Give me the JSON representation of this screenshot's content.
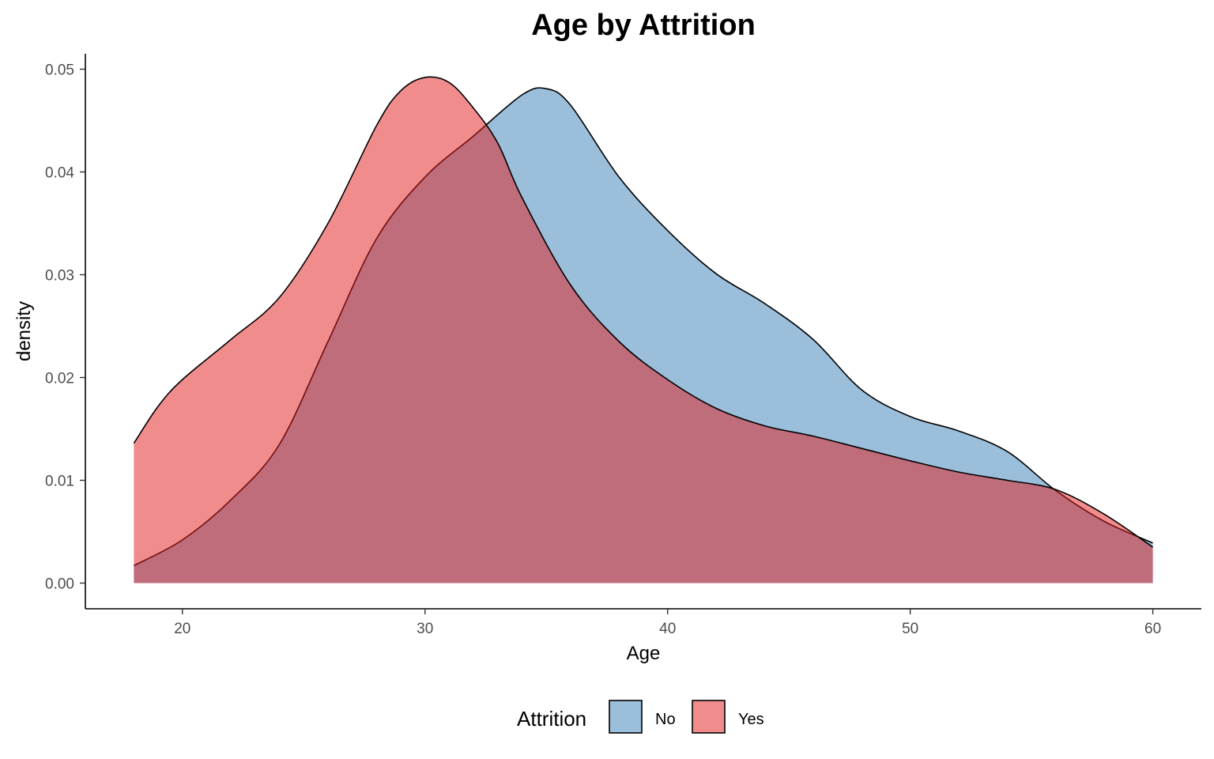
{
  "chart_data": {
    "type": "area",
    "subtype": "density",
    "title": "Age by Attrition",
    "xlabel": "Age",
    "ylabel": "density",
    "xlim": [
      16,
      62
    ],
    "ylim": [
      -0.0025,
      0.0515
    ],
    "x_ticks": [
      20,
      30,
      40,
      50,
      60
    ],
    "y_ticks": [
      0.0,
      0.01,
      0.02,
      0.03,
      0.04,
      0.05
    ],
    "x_tick_labels": [
      "20",
      "30",
      "40",
      "50",
      "60"
    ],
    "y_tick_labels": [
      "0.00",
      "0.01",
      "0.02",
      "0.03",
      "0.04",
      "0.05"
    ],
    "grid": false,
    "legend": {
      "title": "Attrition",
      "position": "bottom",
      "entries": [
        {
          "label": "No",
          "color": "#377EB8"
        },
        {
          "label": "Yes",
          "color": "#E41A1C"
        }
      ]
    },
    "fill_opacity": 0.5,
    "outline_color": "#000000",
    "series": [
      {
        "name": "No",
        "color": "#377EB8",
        "x": [
          18,
          20,
          22,
          24,
          26,
          28,
          30,
          32,
          34,
          35,
          36,
          38,
          40,
          42,
          44,
          46,
          48,
          50,
          52,
          54,
          56,
          58,
          60
        ],
        "values": [
          0.0017,
          0.0042,
          0.0081,
          0.0135,
          0.0235,
          0.0335,
          0.0395,
          0.0435,
          0.0475,
          0.0481,
          0.0465,
          0.0395,
          0.0343,
          0.0301,
          0.0272,
          0.0237,
          0.0188,
          0.0162,
          0.0148,
          0.0128,
          0.009,
          0.006,
          0.0039
        ]
      },
      {
        "name": "Yes",
        "color": "#E41A1C",
        "x": [
          18,
          19,
          20,
          22,
          24,
          26,
          28,
          29,
          30,
          31,
          32,
          33,
          34,
          36,
          38,
          40,
          42,
          44,
          46,
          48,
          50,
          52,
          54,
          56,
          58,
          60
        ],
        "values": [
          0.0136,
          0.0172,
          0.0198,
          0.0237,
          0.0278,
          0.035,
          0.0445,
          0.0479,
          0.0492,
          0.0487,
          0.0462,
          0.0428,
          0.0375,
          0.029,
          0.0235,
          0.0198,
          0.017,
          0.0153,
          0.0143,
          0.0131,
          0.0119,
          0.0108,
          0.01,
          0.0091,
          0.0067,
          0.0035
        ]
      }
    ]
  }
}
